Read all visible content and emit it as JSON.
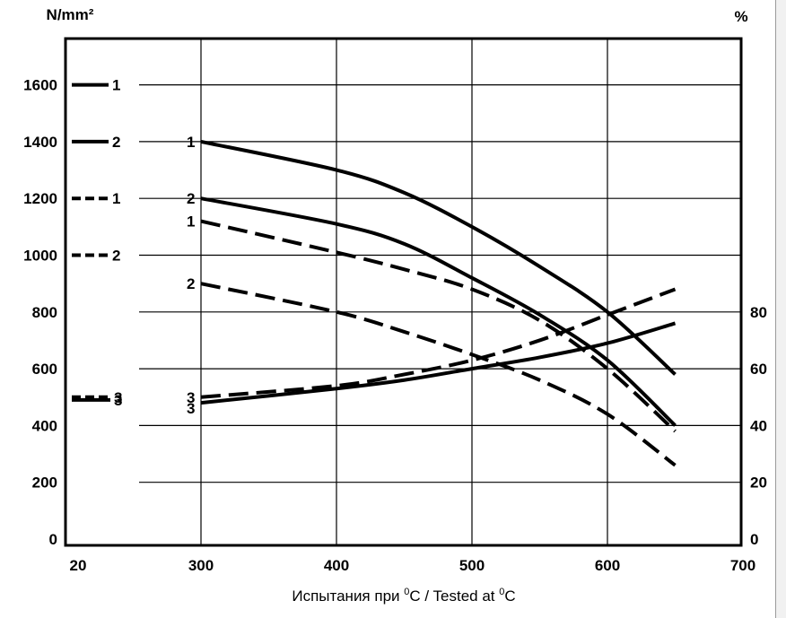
{
  "chart_data": {
    "type": "line",
    "y_left_unit": "N/mm²",
    "y_right_unit": "%",
    "x_label_prefix": "Испытания при ",
    "x_label_mid": "C / Tested at ",
    "x_label_end": "C",
    "x_label_sup": "0",
    "xlim": [
      200,
      700
    ],
    "ylim_left": [
      0,
      1700
    ],
    "ylim_right": [
      0,
      170
    ],
    "x_ticks": [
      {
        "value": 300,
        "label": "300"
      },
      {
        "value": 400,
        "label": "400"
      },
      {
        "value": 500,
        "label": "500"
      },
      {
        "value": 600,
        "label": "600"
      },
      {
        "value": 700,
        "label": "700"
      }
    ],
    "x_first_tick_label": "20",
    "y_left_ticks": [
      {
        "value": 0,
        "label": "0"
      },
      {
        "value": 200,
        "label": "200"
      },
      {
        "value": 400,
        "label": "400"
      },
      {
        "value": 600,
        "label": "600"
      },
      {
        "value": 800,
        "label": "800"
      },
      {
        "value": 1000,
        "label": "1000"
      },
      {
        "value": 1200,
        "label": "1200"
      },
      {
        "value": 1400,
        "label": "1400"
      },
      {
        "value": 1600,
        "label": "1600"
      }
    ],
    "y_right_ticks": [
      {
        "value": 0,
        "label": "0"
      },
      {
        "value": 20,
        "label": "20"
      },
      {
        "value": 40,
        "label": "40"
      },
      {
        "value": 60,
        "label": "60"
      },
      {
        "value": 80,
        "label": "80"
      }
    ],
    "grid": true,
    "room_temp_values": [
      {
        "label": "1",
        "value": 1600,
        "style": "solid"
      },
      {
        "label": "2",
        "value": 1400,
        "style": "solid"
      },
      {
        "label": "1",
        "value": 1200,
        "style": "dashed"
      },
      {
        "label": "2",
        "value": 1000,
        "style": "dashed"
      },
      {
        "label": "3",
        "value": 500,
        "style": "dashed"
      },
      {
        "label": "3",
        "value": 490,
        "style": "solid"
      }
    ],
    "series": [
      {
        "label": "1",
        "style": "solid",
        "axis": "left",
        "x": [
          300,
          400,
          450,
          500,
          550,
          600,
          650
        ],
        "y": [
          1400,
          1300,
          1220,
          1100,
          960,
          800,
          580
        ]
      },
      {
        "label": "2",
        "style": "solid",
        "axis": "left",
        "x": [
          300,
          400,
          450,
          500,
          550,
          600,
          650
        ],
        "y": [
          1200,
          1110,
          1040,
          920,
          790,
          630,
          400
        ]
      },
      {
        "label": "1",
        "style": "dashed",
        "axis": "left",
        "x": [
          300,
          400,
          450,
          500,
          550,
          600,
          650
        ],
        "y": [
          1120,
          1010,
          950,
          880,
          770,
          600,
          380
        ]
      },
      {
        "label": "2",
        "style": "dashed",
        "axis": "left",
        "x": [
          300,
          400,
          450,
          500,
          550,
          600,
          650
        ],
        "y": [
          900,
          800,
          730,
          650,
          560,
          440,
          260
        ]
      },
      {
        "label": "3",
        "style": "dashed",
        "axis": "right",
        "x": [
          300,
          400,
          450,
          500,
          550,
          600,
          650
        ],
        "y": [
          50,
          54,
          58,
          63,
          70,
          79,
          88
        ]
      },
      {
        "label": "3",
        "style": "solid",
        "axis": "right",
        "x": [
          300,
          400,
          450,
          500,
          550,
          600,
          650
        ],
        "y": [
          48,
          53,
          56,
          60,
          64,
          69,
          76
        ]
      }
    ]
  }
}
